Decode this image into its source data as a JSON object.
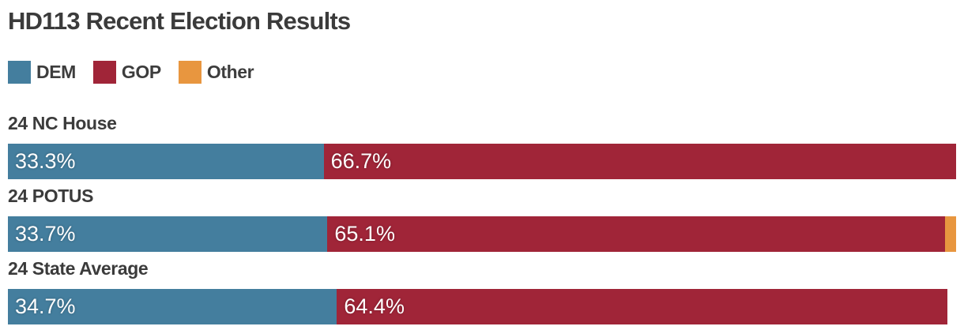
{
  "title": "HD113 Recent Election Results",
  "colors": {
    "dem": "#447e9e",
    "gop": "#a02538",
    "other": "#e8963f",
    "heading_text": "#3b3b3b",
    "bar_label_text": "#ffffff",
    "background": "#ffffff"
  },
  "legend": {
    "items": [
      {
        "id": "dem",
        "label": "DEM"
      },
      {
        "id": "gop",
        "label": "GOP"
      },
      {
        "id": "other",
        "label": "Other"
      }
    ]
  },
  "rows": [
    {
      "label": "24 NC House",
      "dem": 33.3,
      "gop": 66.7,
      "other": 0,
      "dem_label": "33.3%",
      "gop_label": "66.7%",
      "other_label": ""
    },
    {
      "label": "24 POTUS",
      "dem": 33.7,
      "gop": 65.1,
      "other": 1.2,
      "dem_label": "33.7%",
      "gop_label": "65.1%",
      "other_label": ""
    },
    {
      "label": "24 State Average",
      "dem": 34.7,
      "gop": 64.4,
      "other": 0,
      "dem_label": "34.7%",
      "gop_label": "64.4%",
      "other_label": ""
    }
  ],
  "chart_data": {
    "type": "bar",
    "orientation": "horizontal",
    "stacked": true,
    "title": "HD113 Recent Election Results",
    "categories": [
      "24 NC House",
      "24 POTUS",
      "24 State Average"
    ],
    "series": [
      {
        "name": "DEM",
        "color": "#447e9e",
        "values": [
          33.3,
          33.7,
          34.7
        ]
      },
      {
        "name": "GOP",
        "color": "#a02538",
        "values": [
          66.7,
          65.1,
          64.4
        ]
      },
      {
        "name": "Other",
        "color": "#e8963f",
        "values": [
          0.0,
          1.2,
          0.0
        ]
      }
    ],
    "value_unit": "%",
    "xlim": [
      0,
      100
    ],
    "grid": false,
    "legend_position": "top-left",
    "annotations": "Segment percent labels shown in white inside DEM and GOP segments only; Other segment unlabeled. 24 State Average bar totals 99.1% so it ends slightly short of full width."
  }
}
